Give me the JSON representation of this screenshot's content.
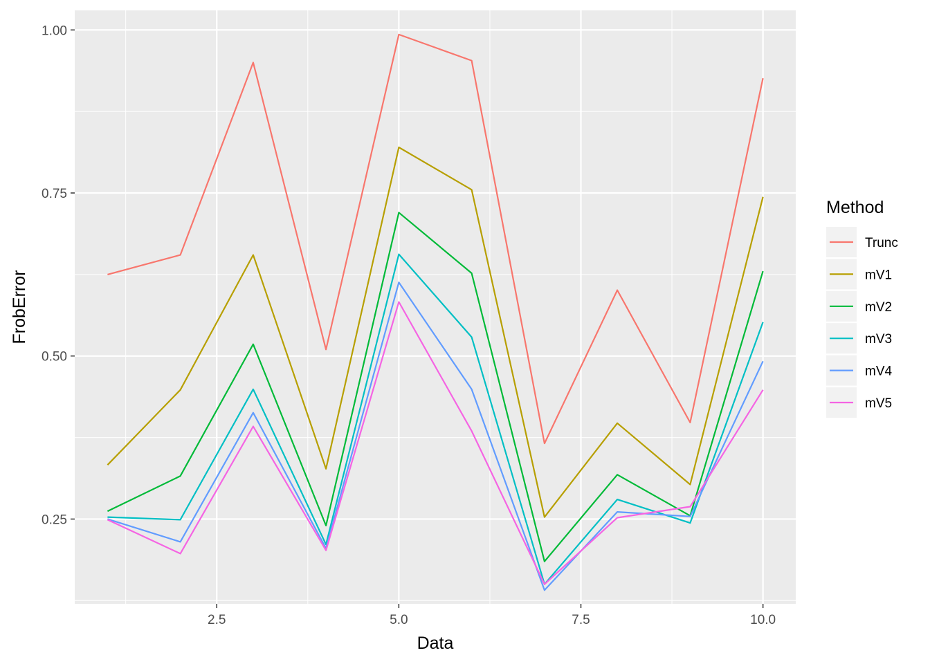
{
  "chart_data": {
    "type": "line",
    "xlabel": "Data",
    "ylabel": "FrobError",
    "xlim": [
      0.55,
      10.45
    ],
    "ylim": [
      0.12,
      1.03
    ],
    "x_ticks": [
      2.5,
      5.0,
      7.5,
      10.0
    ],
    "x_tick_labels": [
      "2.5",
      "5.0",
      "7.5",
      "10.0"
    ],
    "y_ticks": [
      0.25,
      0.5,
      0.75,
      1.0
    ],
    "y_tick_labels": [
      "0.25",
      "0.50",
      "0.75",
      "1.00"
    ],
    "grid": true,
    "legend_title": "Method",
    "legend_position": "right",
    "x": [
      1,
      2,
      3,
      4,
      5,
      6,
      7,
      8,
      9,
      10
    ],
    "series": [
      {
        "name": "Trunc",
        "color": "#F8766D",
        "values": [
          0.625,
          0.655,
          0.95,
          0.51,
          0.993,
          0.953,
          0.366,
          0.601,
          0.398,
          0.926
        ]
      },
      {
        "name": "mV1",
        "color": "#B79F00",
        "values": [
          0.333,
          0.448,
          0.655,
          0.327,
          0.82,
          0.755,
          0.253,
          0.397,
          0.303,
          0.744
        ]
      },
      {
        "name": "mV2",
        "color": "#00BA38",
        "values": [
          0.262,
          0.316,
          0.518,
          0.24,
          0.72,
          0.627,
          0.185,
          0.318,
          0.255,
          0.63
        ]
      },
      {
        "name": "mV3",
        "color": "#00BFC4",
        "values": [
          0.253,
          0.249,
          0.449,
          0.211,
          0.656,
          0.529,
          0.15,
          0.28,
          0.244,
          0.552
        ]
      },
      {
        "name": "mV4",
        "color": "#619CFF",
        "values": [
          0.25,
          0.215,
          0.413,
          0.205,
          0.613,
          0.449,
          0.141,
          0.261,
          0.254,
          0.492
        ]
      },
      {
        "name": "mV5",
        "color": "#F564E3",
        "values": [
          0.249,
          0.197,
          0.392,
          0.202,
          0.583,
          0.385,
          0.15,
          0.252,
          0.269,
          0.448
        ]
      }
    ]
  }
}
